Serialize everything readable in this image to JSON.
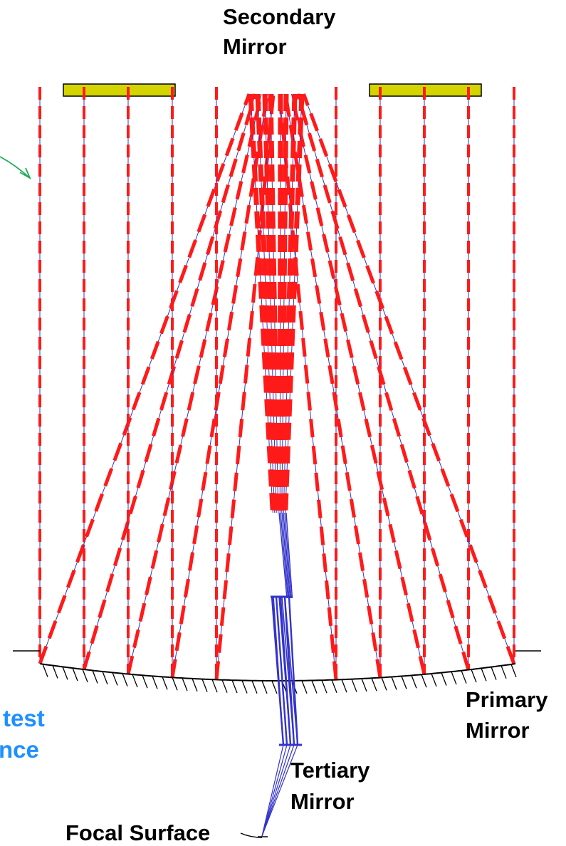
{
  "labels": {
    "secondary_mirror": [
      "Secondary",
      "Mirror"
    ],
    "primary_mirror": [
      "Primary",
      "Mirror"
    ],
    "tertiary_mirror": [
      "Tertiary",
      "Mirror"
    ],
    "focal_surface": "Focal Surface",
    "cropped_left": [
      "test",
      "nce"
    ]
  },
  "colors": {
    "ray_incoming": "#ff1a1a",
    "ray_reflected": "#3333cc",
    "obstruction": "#d4d400",
    "mirror": "#000000",
    "arrow": "#22aa55",
    "cropped_text": "#1e90ff"
  }
}
